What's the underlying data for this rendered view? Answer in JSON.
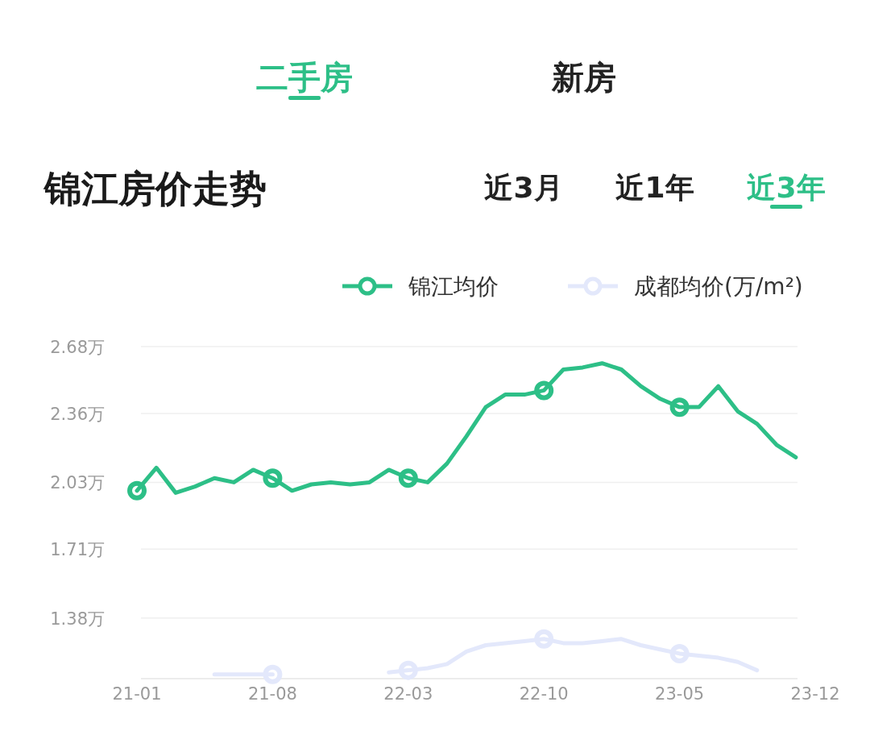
{
  "chart_data": {
    "type": "line",
    "title": "锦江房价走势",
    "annotations": [
      "二手房",
      "新房",
      "近3月",
      "近1年",
      "近3年"
    ],
    "categories": [
      "21-01",
      null,
      null,
      null,
      null,
      null,
      null,
      "21-08",
      null,
      null,
      null,
      null,
      null,
      null,
      "22-03",
      null,
      null,
      null,
      null,
      null,
      null,
      "22-10",
      null,
      null,
      null,
      null,
      null,
      null,
      "23-05",
      null,
      null,
      null,
      null,
      null,
      null,
      "23-12"
    ],
    "series": [
      {
        "name": "锦江均价",
        "color": "#2dbf87",
        "marker": "none",
        "values": [
          1.99,
          2.1,
          1.98,
          2.01,
          2.05,
          2.03,
          2.09,
          2.05,
          1.99,
          2.02,
          2.03,
          2.02,
          2.03,
          2.09,
          2.05,
          2.03,
          2.12,
          2.25,
          2.39,
          2.45,
          2.45,
          2.47,
          2.57,
          2.58,
          2.6,
          2.57,
          2.49,
          2.43,
          2.39,
          2.39,
          2.49,
          2.37,
          2.31,
          2.21,
          2.15,
          null
        ]
      },
      {
        "name": "成都均价(万/m²)",
        "color": "#e3e8fb",
        "marker": "none",
        "values": [
          null,
          null,
          null,
          null,
          1.11,
          1.11,
          1.11,
          1.11,
          null,
          null,
          null,
          null,
          null,
          1.12,
          1.13,
          1.14,
          1.16,
          1.22,
          1.25,
          1.26,
          1.27,
          1.28,
          1.26,
          1.26,
          1.27,
          1.28,
          1.25,
          1.23,
          1.21,
          1.2,
          1.19,
          1.17,
          1.13,
          null,
          null,
          null
        ]
      },
      {
        "type": "scatter",
        "color": "#2dbf87",
        "marker": "circle",
        "x": [
          "21-01",
          "21-08",
          "22-03",
          "22-10",
          "23-05"
        ],
        "values": [
          1.99,
          2.05,
          2.05,
          2.47,
          2.39
        ]
      },
      {
        "type": "scatter",
        "color": "#e3e8fb",
        "marker": "circle",
        "x": [
          "21-08",
          "22-03",
          "22-10",
          "23-05"
        ],
        "values": [
          1.11,
          1.13,
          1.28,
          1.21
        ]
      }
    ],
    "ylim": [
      1.09,
      2.68
    ],
    "yticks": [
      {
        "value": 1.38,
        "label": "1.38万"
      },
      {
        "value": 1.71,
        "label": "1.71万"
      },
      {
        "value": 2.03,
        "label": "2.03万"
      },
      {
        "value": 2.36,
        "label": "2.36万"
      },
      {
        "value": 2.68,
        "label": "2.68万"
      }
    ],
    "grid": "y",
    "legend": "top right",
    "line_style": "solid"
  }
}
